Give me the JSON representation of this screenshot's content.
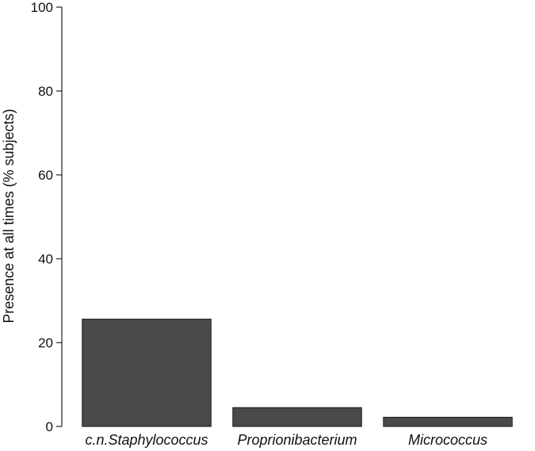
{
  "chart_data": {
    "type": "bar",
    "categories": [
      "c.n.Staphylococcus",
      "Proprionibacterium",
      "Micrococcus"
    ],
    "values": [
      25.6,
      4.5,
      2.2
    ],
    "title": "",
    "xlabel": "",
    "ylabel": "Presence at all times (% subjects)",
    "ylim": [
      0,
      100
    ],
    "yticks": [
      0,
      20,
      40,
      60,
      80,
      100
    ],
    "bar_color": "#4a4a4a",
    "grid": false
  }
}
